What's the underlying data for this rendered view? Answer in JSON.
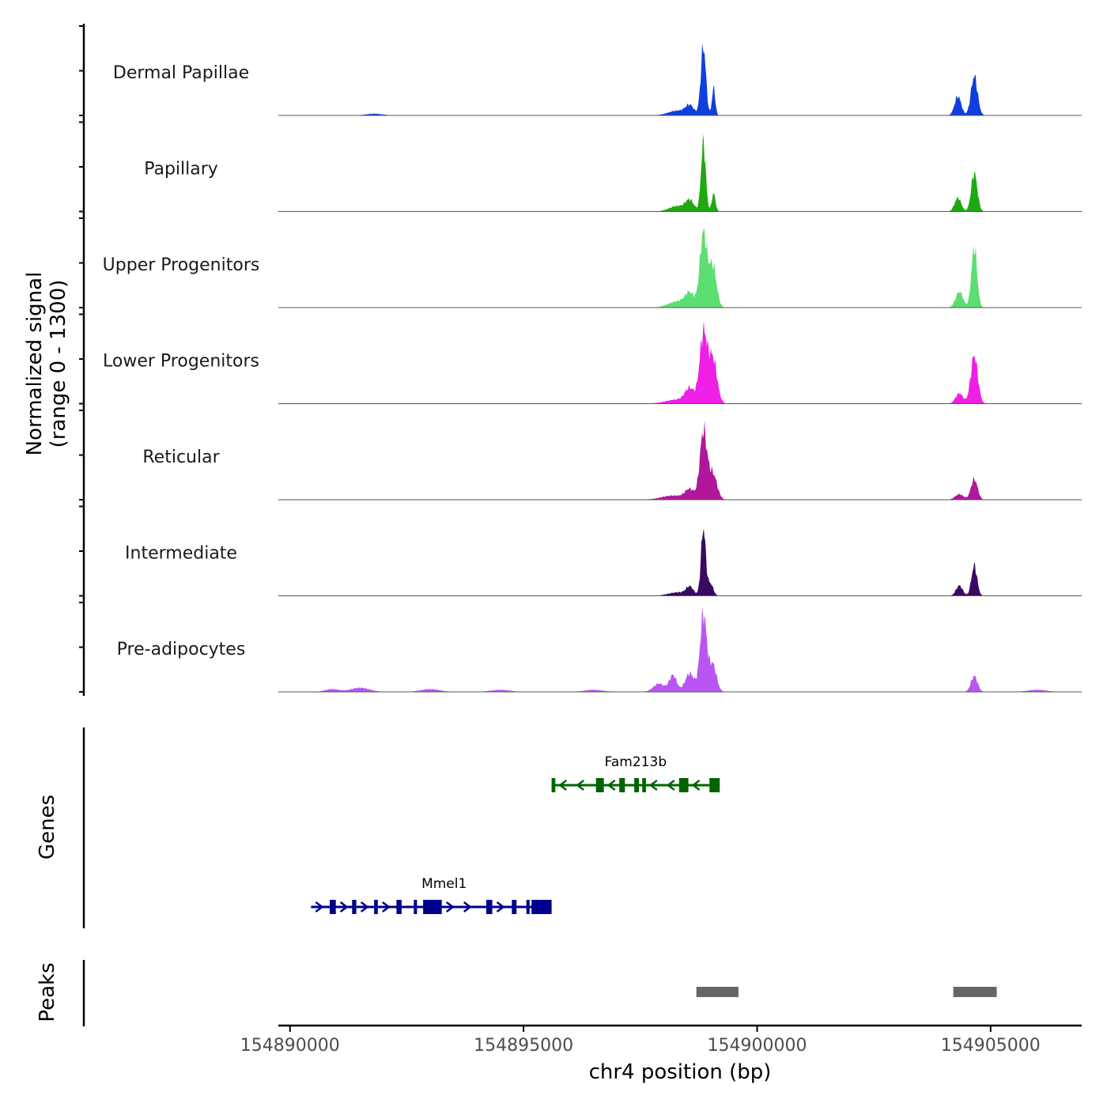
{
  "chart_data": {
    "type": "area",
    "title": "",
    "chromosome": "chr4",
    "xlabel": "chr4 position (bp)",
    "xlim": [
      154889750,
      154906950
    ],
    "xticks": [
      154890000,
      154895000,
      154900000,
      154905000
    ],
    "xtick_labels": [
      "154890000",
      "154895000",
      "154900000",
      "154905000"
    ],
    "coverage": {
      "ylabel_line1": "Normalized signal",
      "ylabel_line2": "(range 0 - 1300)",
      "ylim": [
        0,
        1300
      ],
      "tracks": [
        {
          "name": "Dermal Papillae",
          "color": "#0f3fdc",
          "peaks": [
            [
              154898850,
              1000,
              55
            ],
            [
              154898560,
              130,
              90
            ],
            [
              154899070,
              400,
              35
            ],
            [
              154898300,
              70,
              200
            ],
            [
              154904650,
              570,
              70
            ],
            [
              154904300,
              280,
              70
            ],
            [
              154891800,
              25,
              180
            ]
          ]
        },
        {
          "name": "Papillary",
          "color": "#1fa80f",
          "peaks": [
            [
              154898850,
              1000,
              50
            ],
            [
              154898560,
              150,
              90
            ],
            [
              154899070,
              260,
              40
            ],
            [
              154898300,
              80,
              180
            ],
            [
              154904650,
              560,
              65
            ],
            [
              154904300,
              200,
              70
            ]
          ]
        },
        {
          "name": "Upper Progenitors",
          "color": "#5cde72",
          "peaks": [
            [
              154898850,
              1070,
              75
            ],
            [
              154899050,
              610,
              80
            ],
            [
              154898560,
              190,
              100
            ],
            [
              154898300,
              90,
              200
            ],
            [
              154904650,
              880,
              60
            ],
            [
              154904330,
              230,
              80
            ]
          ]
        },
        {
          "name": "Lower Progenitors",
          "color": "#ef20e6",
          "peaks": [
            [
              154898850,
              1000,
              80
            ],
            [
              154899050,
              660,
              90
            ],
            [
              154898560,
              200,
              100
            ],
            [
              154898300,
              60,
              250
            ],
            [
              154904650,
              700,
              75
            ],
            [
              154904330,
              150,
              80
            ]
          ]
        },
        {
          "name": "Reticular",
          "color": "#b0179a",
          "peaks": [
            [
              154898850,
              980,
              75
            ],
            [
              154899050,
              380,
              90
            ],
            [
              154898560,
              140,
              100
            ],
            [
              154898200,
              60,
              250
            ],
            [
              154904650,
              300,
              70
            ],
            [
              154904330,
              80,
              90
            ]
          ]
        },
        {
          "name": "Intermediate",
          "color": "#3a0a62",
          "peaks": [
            [
              154898850,
              980,
              50
            ],
            [
              154899000,
              180,
              60
            ],
            [
              154898560,
              120,
              80
            ],
            [
              154898300,
              50,
              200
            ],
            [
              154904650,
              440,
              60
            ],
            [
              154904330,
              150,
              70
            ]
          ]
        },
        {
          "name": "Pre-adipocytes",
          "color": "#b956f2",
          "peaks": [
            [
              154898850,
              1120,
              70
            ],
            [
              154899050,
              400,
              80
            ],
            [
              154898560,
              270,
              100
            ],
            [
              154898200,
              240,
              80
            ],
            [
              154897900,
              120,
              120
            ],
            [
              154904650,
              230,
              70
            ],
            [
              154891500,
              60,
              200
            ],
            [
              154890900,
              40,
              150
            ],
            [
              154893000,
              40,
              200
            ],
            [
              154894500,
              30,
              200
            ],
            [
              154896500,
              30,
              200
            ],
            [
              154906000,
              30,
              200
            ]
          ]
        }
      ]
    },
    "genes": {
      "ylabel": "Genes",
      "items": [
        {
          "name": "Fam213b",
          "strand": "-",
          "color": "#006400",
          "start": 154895600,
          "end": 154899200,
          "exons": [
            [
              154895600,
              154895680
            ],
            [
              154896550,
              154896720
            ],
            [
              154897050,
              154897170
            ],
            [
              154897370,
              154897470
            ],
            [
              154897540,
              154897620
            ],
            [
              154898330,
              154898530
            ],
            [
              154898980,
              154899200
            ]
          ]
        },
        {
          "name": "Mmel1",
          "strand": "+",
          "color": "#00008b",
          "start": 154890450,
          "end": 154895600,
          "exons": [
            [
              154890850,
              154890980
            ],
            [
              154891330,
              154891420
            ],
            [
              154891800,
              154891880
            ],
            [
              154892280,
              154892390
            ],
            [
              154892650,
              154892720
            ],
            [
              154892850,
              154893250
            ],
            [
              154894200,
              154894330
            ],
            [
              154894750,
              154894850
            ],
            [
              154895060,
              154895130
            ],
            [
              154895170,
              154895600
            ]
          ]
        }
      ]
    },
    "peaks": {
      "ylabel": "Peaks",
      "color": "#666666",
      "regions": [
        [
          154898700,
          154899600
        ],
        [
          154904200,
          154905130
        ]
      ]
    }
  }
}
